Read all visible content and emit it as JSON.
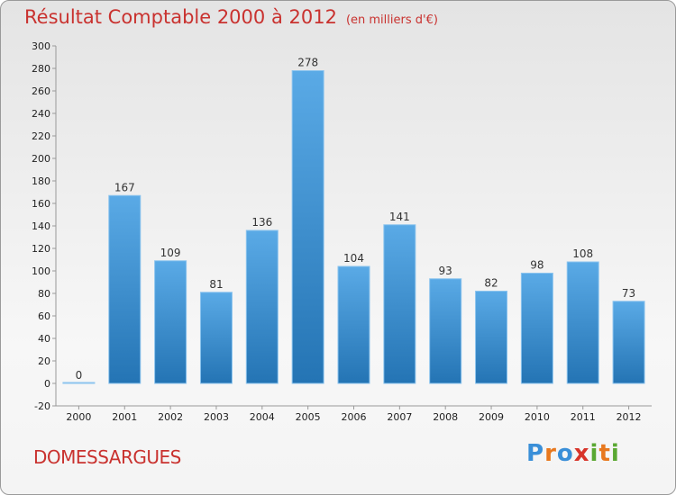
{
  "header": {
    "title": "Résultat Comptable 2000 à 2012",
    "subtitle": "(en milliers d'€)"
  },
  "footer": {
    "commune": "DOMESSARGUES",
    "logo_text": "Proxiti"
  },
  "colors": {
    "title": "#c9322f",
    "bar_top": "#5aaae6",
    "bar_bottom": "#2474b4",
    "logo": [
      "#3a8fd8",
      "#e8781e",
      "#3a8fd8",
      "#d8342a",
      "#5aa832",
      "#e8781e",
      "#5aa832"
    ]
  },
  "chart_data": {
    "type": "bar",
    "categories": [
      "2000",
      "2001",
      "2002",
      "2003",
      "2004",
      "2005",
      "2006",
      "2007",
      "2008",
      "2009",
      "2010",
      "2011",
      "2012"
    ],
    "values": [
      0,
      167,
      109,
      81,
      136,
      278,
      104,
      141,
      93,
      82,
      98,
      108,
      73
    ],
    "ylim": [
      -20,
      300
    ],
    "yticks": [
      -20,
      0,
      20,
      40,
      60,
      80,
      100,
      120,
      140,
      160,
      180,
      200,
      220,
      240,
      260,
      280,
      300
    ],
    "grid": false,
    "legend": "none"
  }
}
